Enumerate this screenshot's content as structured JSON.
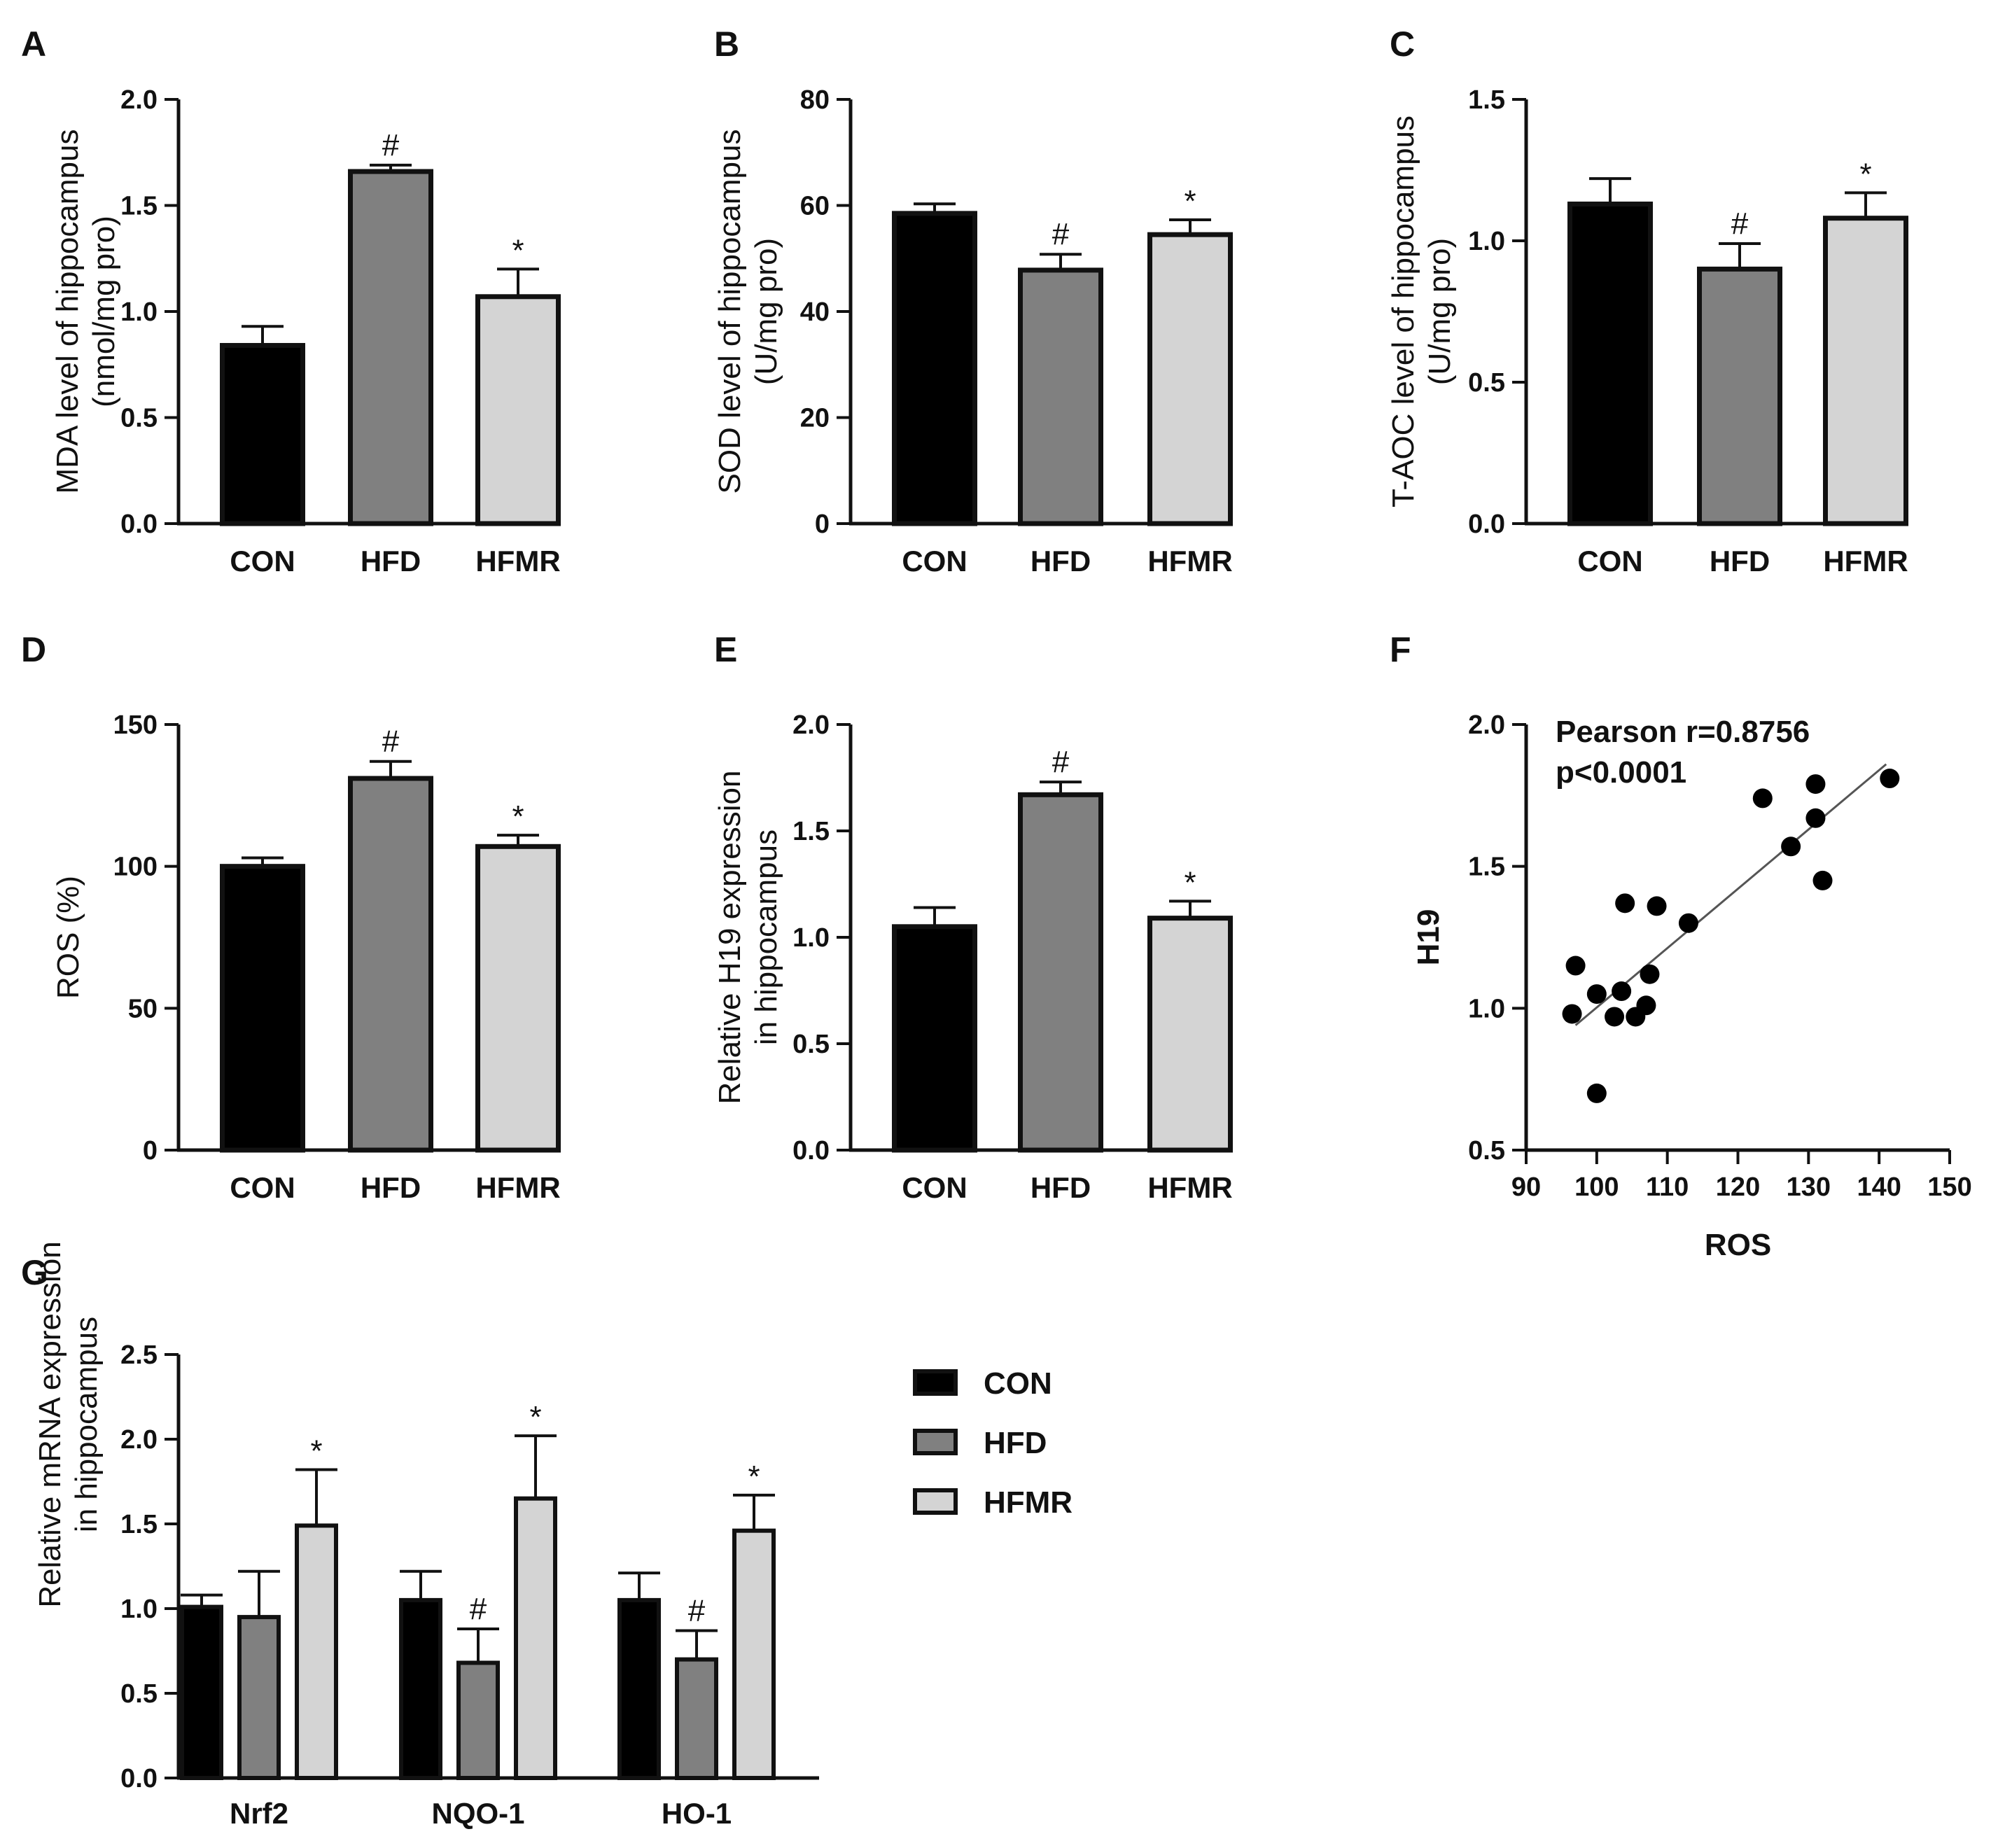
{
  "colors": {
    "CON": "#000000",
    "HFD": "#808080",
    "HFMR": "#d4d4d4",
    "line": "#111111"
  },
  "chart_data": [
    {
      "id": "A",
      "panel": "A",
      "type": "bar",
      "categories": [
        "CON",
        "HFD",
        "HFMR"
      ],
      "values": [
        0.84,
        1.66,
        1.07
      ],
      "errors": [
        0.09,
        0.03,
        0.13
      ],
      "labels": [
        "",
        "#",
        "*"
      ],
      "ylabel": [
        "MDA level of hippocampus",
        "(nmol/mg pro)"
      ],
      "ylim": [
        0,
        2.0
      ],
      "yticks": [
        "0.0",
        "0.5",
        "1.0",
        "1.5",
        "2.0"
      ]
    },
    {
      "id": "B",
      "panel": "B",
      "type": "bar",
      "categories": [
        "CON",
        "HFD",
        "HFMR"
      ],
      "values": [
        58.5,
        47.8,
        54.5
      ],
      "errors": [
        1.8,
        3.0,
        2.8
      ],
      "labels": [
        "",
        "#",
        "*"
      ],
      "ylabel": [
        "SOD level of hippocampus",
        "(U/mg pro)"
      ],
      "ylim": [
        0,
        80
      ],
      "yticks": [
        "0",
        "20",
        "40",
        "60",
        "80"
      ]
    },
    {
      "id": "C",
      "panel": "C",
      "type": "bar",
      "categories": [
        "CON",
        "HFD",
        "HFMR"
      ],
      "values": [
        1.13,
        0.9,
        1.08
      ],
      "errors": [
        0.09,
        0.09,
        0.09
      ],
      "labels": [
        "",
        "#",
        "*"
      ],
      "ylabel": [
        "T-AOC level of hippocampus",
        "(U/mg pro)"
      ],
      "ylim": [
        0,
        1.5
      ],
      "yticks": [
        "0.0",
        "0.5",
        "1.0",
        "1.5"
      ]
    },
    {
      "id": "D",
      "panel": "D",
      "type": "bar",
      "categories": [
        "CON",
        "HFD",
        "HFMR"
      ],
      "values": [
        100,
        131,
        107
      ],
      "errors": [
        3,
        6,
        4
      ],
      "labels": [
        "",
        "#",
        "*"
      ],
      "ylabel": [
        "ROS (%)"
      ],
      "ylim": [
        0,
        150
      ],
      "yticks": [
        "0",
        "50",
        "100",
        "150"
      ]
    },
    {
      "id": "E",
      "panel": "E",
      "type": "bar",
      "categories": [
        "CON",
        "HFD",
        "HFMR"
      ],
      "values": [
        1.05,
        1.67,
        1.09
      ],
      "errors": [
        0.09,
        0.06,
        0.08
      ],
      "labels": [
        "",
        "#",
        "*"
      ],
      "ylabel": [
        "Relative H19 expression",
        "in hippocampus"
      ],
      "ylim": [
        0,
        2.0
      ],
      "yticks": [
        "0.0",
        "0.5",
        "1.0",
        "1.5",
        "2.0"
      ]
    },
    {
      "id": "F",
      "panel": "F",
      "type": "scatter",
      "xlabel": "ROS",
      "ylabel": "H19",
      "xlim": [
        90,
        150
      ],
      "ylim": [
        0.5,
        2.0
      ],
      "xticks": [
        "90",
        "100",
        "110",
        "120",
        "130",
        "140",
        "150"
      ],
      "yticks": [
        "0.5",
        "1.0",
        "1.5",
        "2.0"
      ],
      "annotation": [
        "Pearson r=0.8756",
        "p<0.0001"
      ],
      "fit": {
        "x": [
          97,
          141
        ],
        "y": [
          0.94,
          1.86
        ]
      },
      "points": [
        [
          96.5,
          0.98
        ],
        [
          97,
          1.15
        ],
        [
          100,
          1.05
        ],
        [
          100,
          0.7
        ],
        [
          102.5,
          0.97
        ],
        [
          103.5,
          1.06
        ],
        [
          104,
          1.37
        ],
        [
          105.5,
          0.97
        ],
        [
          107,
          1.01
        ],
        [
          107.5,
          1.12
        ],
        [
          108.5,
          1.36
        ],
        [
          113,
          1.3
        ],
        [
          123.5,
          1.74
        ],
        [
          127.5,
          1.57
        ],
        [
          131,
          1.79
        ],
        [
          131,
          1.67
        ],
        [
          132,
          1.45
        ],
        [
          141.5,
          1.81
        ]
      ]
    },
    {
      "id": "G",
      "panel": "G",
      "type": "bar",
      "categories": [
        "Nrf2",
        "NQO-1",
        "HO-1"
      ],
      "series": [
        {
          "name": "CON",
          "values": [
            1.01,
            1.05,
            1.05
          ],
          "errors": [
            0.07,
            0.17,
            0.16
          ],
          "labels": [
            "",
            "",
            ""
          ]
        },
        {
          "name": "HFD",
          "values": [
            0.95,
            0.68,
            0.7
          ],
          "errors": [
            0.27,
            0.2,
            0.17
          ],
          "labels": [
            "",
            "#",
            "#"
          ]
        },
        {
          "name": "HFMR",
          "values": [
            1.49,
            1.65,
            1.46
          ],
          "errors": [
            0.33,
            0.37,
            0.21
          ],
          "labels": [
            "*",
            "*",
            "*"
          ]
        }
      ],
      "ylabel": [
        "Relative mRNA expression",
        "in hippocampus"
      ],
      "ylim": [
        0,
        2.5
      ],
      "yticks": [
        "0.0",
        "0.5",
        "1.0",
        "1.5",
        "2.0",
        "2.5"
      ],
      "legend": [
        "CON",
        "HFD",
        "HFMR"
      ]
    }
  ]
}
